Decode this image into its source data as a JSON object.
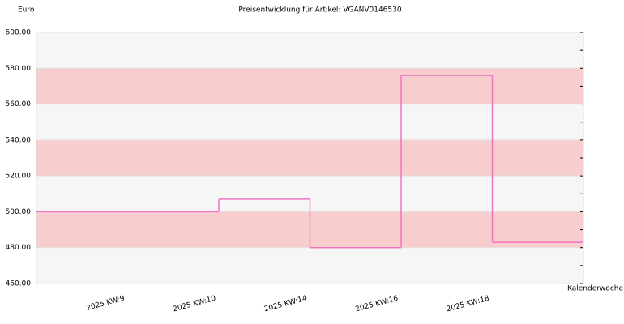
{
  "chart_data": {
    "type": "step-line",
    "title": "Preisentwicklung für Artikel: VGANV0146530",
    "y_label": "Euro",
    "x_label": "Kalenderwoche",
    "categories": [
      "2025 KW:9",
      "2025 KW:10",
      "2025 KW:14",
      "2025 KW:16",
      "2025 KW:18"
    ],
    "values": [
      500,
      507,
      480,
      576,
      483
    ],
    "color": "#f075c0",
    "band_colors": [
      "#f6f6f6",
      "#f8cdcd"
    ],
    "ylim": [
      460,
      600
    ],
    "yticks": [
      {
        "value": 460,
        "label": "460.00"
      },
      {
        "value": 480,
        "label": "480.00"
      },
      {
        "value": 500,
        "label": "500.00"
      },
      {
        "value": 520,
        "label": "520.00"
      },
      {
        "value": 540,
        "label": "540.00"
      },
      {
        "value": 560,
        "label": "560.00"
      },
      {
        "value": 580,
        "label": "580.00"
      },
      {
        "value": 600,
        "label": "600.00"
      }
    ]
  }
}
